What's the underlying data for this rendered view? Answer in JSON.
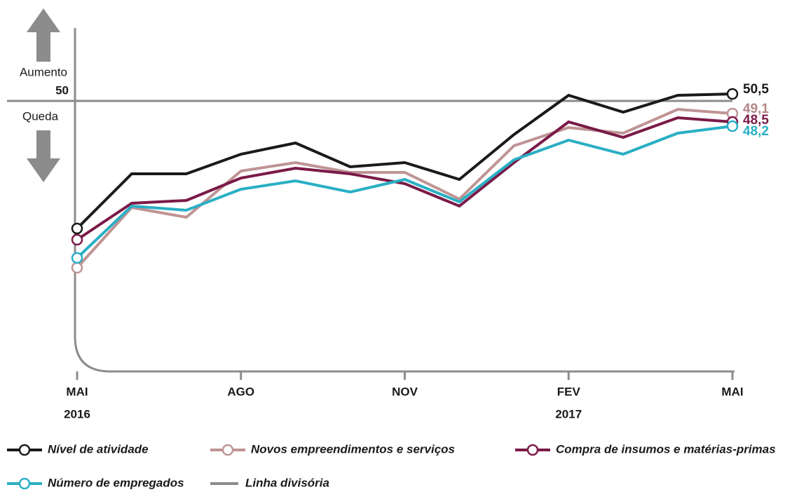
{
  "chart_data": {
    "type": "line",
    "categories": [
      "MAI",
      null,
      null,
      "AGO",
      null,
      null,
      "NOV",
      null,
      null,
      "FEV",
      null,
      null,
      "MAI"
    ],
    "category_years": [
      "2016",
      null,
      null,
      null,
      null,
      null,
      null,
      null,
      null,
      "2017",
      null,
      null,
      null
    ],
    "ylim": [
      30.7,
      55.2
    ],
    "yticks": [
      50
    ],
    "annotations": [
      "Aumento",
      "Queda"
    ],
    "reference_line": {
      "name": "Linha divisória",
      "value": 50,
      "color": "#8c8c8c"
    },
    "series": [
      {
        "name": "Nível de atividade",
        "color": "#1a1a1a",
        "label_color": "#1a1a1a",
        "end_label": "50,5",
        "values": [
          40.9,
          44.8,
          44.8,
          46.2,
          47.0,
          45.3,
          45.6,
          44.4,
          47.6,
          50.4,
          49.2,
          50.4,
          50.5
        ]
      },
      {
        "name": "Novos empreendimentos e serviços",
        "color": "#bf9494",
        "label_color": "#b58585",
        "end_label": "49,1",
        "values": [
          38.1,
          42.4,
          41.7,
          45.0,
          45.6,
          44.9,
          44.9,
          43.0,
          46.8,
          48.1,
          47.7,
          49.4,
          49.1
        ]
      },
      {
        "name": "Compra de insumos e matérias-primas",
        "color": "#7a1a48",
        "label_color": "#7a1a48",
        "end_label": "48,5",
        "values": [
          40.1,
          42.7,
          42.9,
          44.5,
          45.2,
          44.8,
          44.1,
          42.5,
          45.6,
          48.5,
          47.4,
          48.8,
          48.5
        ]
      },
      {
        "name": "Número de empregados",
        "color": "#2aafc4",
        "label_color": "#2aafc4",
        "end_label": "48,2",
        "values": [
          38.8,
          42.5,
          42.2,
          43.7,
          44.3,
          43.5,
          44.4,
          42.8,
          45.8,
          47.2,
          46.2,
          47.7,
          48.2
        ]
      }
    ]
  }
}
